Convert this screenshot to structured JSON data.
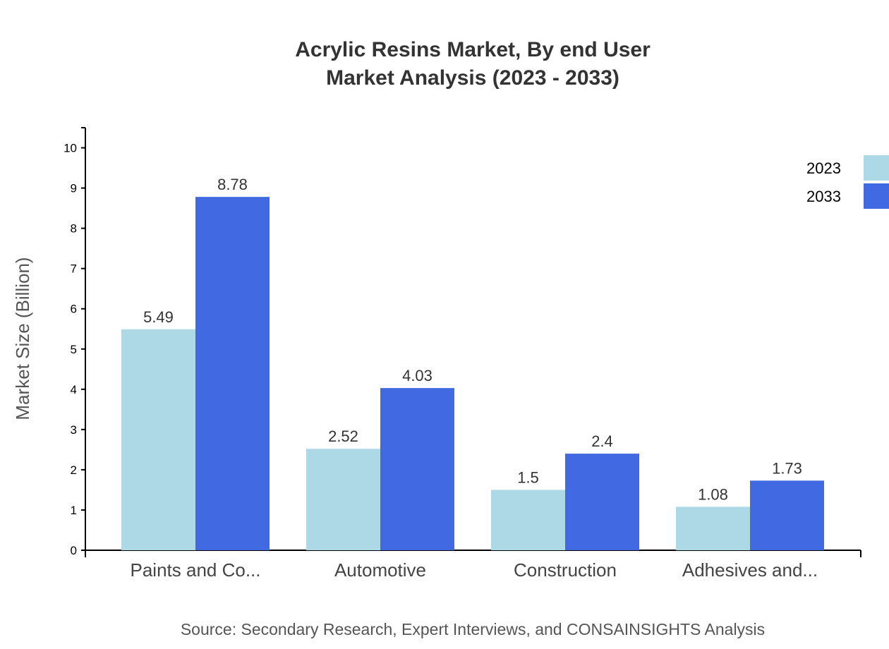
{
  "chart_data": {
    "type": "bar",
    "title": "Acrylic Resins Market, By end User",
    "subtitle": "Market Analysis (2023 - 2033)",
    "xlabel": "",
    "ylabel": "Market Size (Billion)",
    "ylim": [
      0,
      10.5
    ],
    "yticks": [
      0,
      1,
      2,
      3,
      4,
      5,
      6,
      7,
      8,
      9,
      10
    ],
    "categories": [
      "Paints and Co...",
      "Automotive",
      "Construction",
      "Adhesives and..."
    ],
    "series": [
      {
        "name": "2023",
        "color": "#ADD8E6",
        "values": [
          5.49,
          2.52,
          1.5,
          1.08
        ]
      },
      {
        "name": "2033",
        "color": "#4169E1",
        "values": [
          8.78,
          4.03,
          2.4,
          1.73
        ]
      }
    ],
    "grid": false,
    "legend_position": "top-right",
    "source": "Source: Secondary Research, Expert Interviews, and CONSAINSIGHTS Analysis"
  }
}
